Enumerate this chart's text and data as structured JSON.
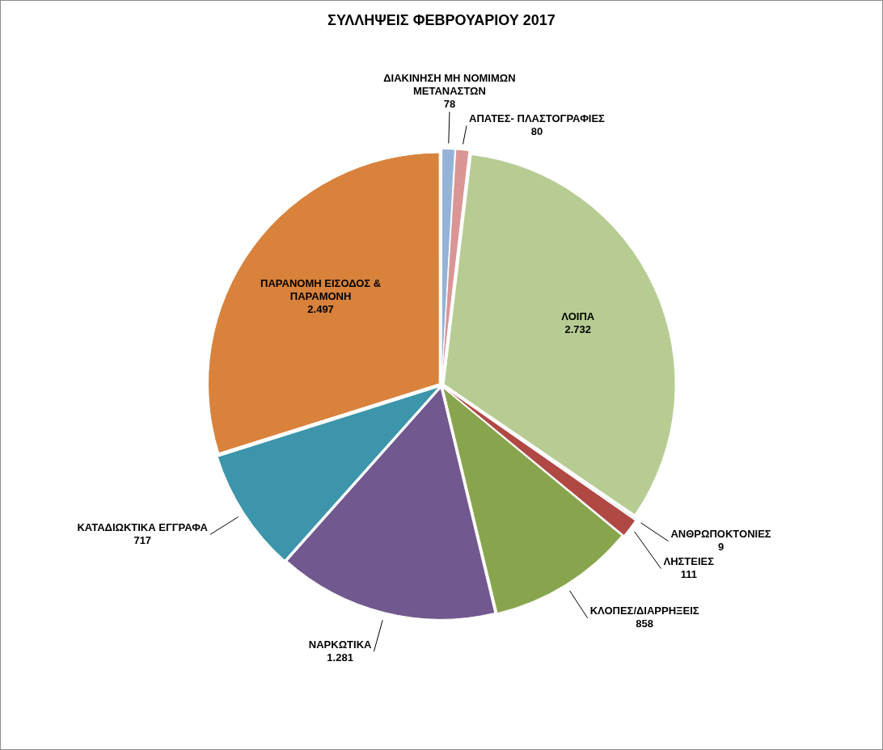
{
  "chart_data": {
    "type": "pie",
    "title": "ΣΥΛΛΗΨΕΙΣ ΦΕΒΡΟΥΑΡΙΟΥ 2017",
    "categories": [
      "ΔΙΑΚΙΝΗΣΗ ΜΗ ΝΟΜΙΜΩΝ ΜΕΤΑΝΑΣΤΩΝ",
      "ΑΠΑΤΕΣ- ΠΛΑΣΤΟΓΡΑΦΙΕΣ",
      "ΛΟΙΠΑ",
      "ΑΝΘΡΩΠΟΚΤΟΝΙΕΣ",
      "ΛΗΣΤΕΙΕΣ",
      "ΚΛΟΠΕΣ/ΔΙΑΡΡΗΞΕΙΣ",
      "ΝΑΡΚΩΤΙΚΑ",
      "ΚΑΤΑΔΙΩΚΤΙΚΑ ΕΓΓΡΑΦΑ",
      "ΠΑΡΑΝΟΜΗ ΕΙΣΟΔΟΣ & ΠΑΡΑΜΟΝΗ"
    ],
    "values": [
      78,
      80,
      2732,
      9,
      111,
      858,
      1281,
      717,
      2497
    ],
    "value_labels": [
      "78",
      "80",
      "2.732",
      "9",
      "111",
      "858",
      "1.281",
      "717",
      "2.497"
    ],
    "colors": [
      "#95b3d7",
      "#d99694",
      "#b7cc93",
      "#1f497d",
      "#b04844",
      "#88a54d",
      "#71588f",
      "#3c95ab",
      "#d8823c"
    ]
  }
}
